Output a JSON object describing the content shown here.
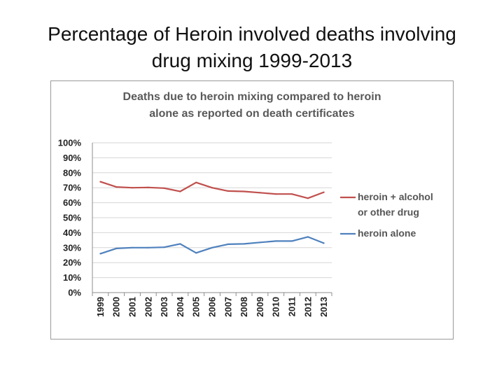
{
  "slide": {
    "title_line1": "Percentage of Heroin involved deaths involving",
    "title_line2": "drug mixing 1999-2013"
  },
  "chart_data": {
    "type": "line",
    "title": "Deaths due to heroin mixing compared to heroin alone as reported on death certificates",
    "title_lines": [
      "Deaths due to heroin mixing compared to heroin",
      "alone as reported on death certificates"
    ],
    "categories": [
      "1999",
      "2000",
      "2001",
      "2002",
      "2003",
      "2004",
      "2005",
      "2006",
      "2007",
      "2008",
      "2009",
      "2010",
      "2011",
      "2012",
      "2013"
    ],
    "series": [
      {
        "name": "heroin + alcohol or other drug",
        "legend_lines": [
          "heroin + alcohol",
          "or other drug"
        ],
        "color": "#c0504d",
        "values": [
          74,
          70.5,
          70,
          70.2,
          69.7,
          67.5,
          73.5,
          70,
          67.8,
          67.5,
          66.7,
          65.8,
          65.8,
          63,
          67
        ]
      },
      {
        "name": "heroin alone",
        "legend_lines": [
          "heroin alone"
        ],
        "color": "#4f81bd",
        "values": [
          26,
          29.5,
          30,
          30,
          30.3,
          32.5,
          26.5,
          30,
          32.3,
          32.5,
          33.5,
          34.4,
          34.4,
          37.2,
          33
        ]
      }
    ],
    "yticks": [
      "0%",
      "10%",
      "20%",
      "30%",
      "40%",
      "50%",
      "60%",
      "70%",
      "80%",
      "90%",
      "100%"
    ],
    "ylim": [
      0,
      100
    ],
    "grid": true,
    "legend": "right"
  }
}
